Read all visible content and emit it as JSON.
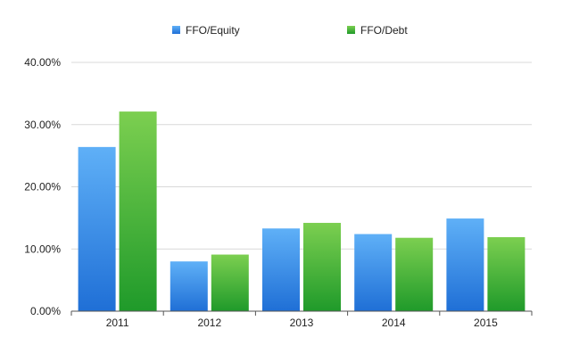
{
  "chart_data": {
    "type": "bar",
    "title": "",
    "xlabel": "",
    "ylabel": "",
    "categories": [
      "2011",
      "2012",
      "2013",
      "2014",
      "2015"
    ],
    "series": [
      {
        "name": "FFO/Equity",
        "values": [
          26.4,
          8.0,
          13.3,
          12.4,
          14.9
        ],
        "color": "#3a8ee6"
      },
      {
        "name": "FFO/Debt",
        "values": [
          32.1,
          9.1,
          14.2,
          11.8,
          11.9
        ],
        "color": "#3fae33"
      }
    ],
    "ylim": [
      0,
      40
    ],
    "yticks": [
      "0.00%",
      "10.00%",
      "20.00%",
      "30.00%",
      "40.00%"
    ],
    "grid": true,
    "legend_position": "top"
  }
}
